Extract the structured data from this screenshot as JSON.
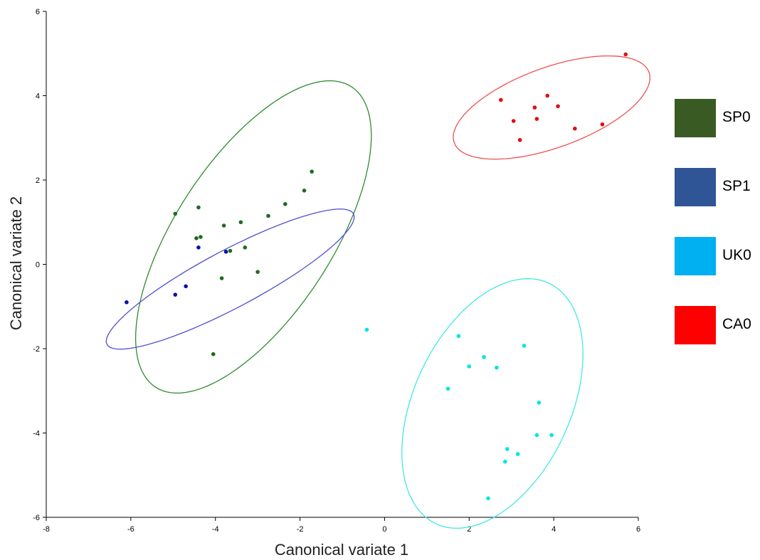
{
  "chart_data": {
    "type": "scatter",
    "xlabel": "Canonical variate 1",
    "ylabel": "Canonical variate 2",
    "xlim": [
      -8,
      6
    ],
    "ylim": [
      -6,
      6
    ],
    "xticks": [
      -8,
      -6,
      -4,
      -2,
      0,
      2,
      4,
      6
    ],
    "yticks": [
      -6,
      -4,
      -2,
      0,
      2,
      4,
      6
    ],
    "grid": false,
    "legend_position": "right",
    "series": [
      {
        "name": "SP0",
        "legend_color": "#3a5a24",
        "point_color": "#1e6b1e",
        "ellipse_color": "#2e8b2e",
        "ellipse": {
          "cx": -3.1,
          "cy": 0.65,
          "rx": 4.25,
          "ry": 1.85,
          "angle_deg": 57
        },
        "points": [
          [
            -4.95,
            1.2
          ],
          [
            -4.4,
            1.35
          ],
          [
            -4.45,
            0.62
          ],
          [
            -4.35,
            0.65
          ],
          [
            -3.8,
            0.92
          ],
          [
            -3.4,
            1.0
          ],
          [
            -2.75,
            1.15
          ],
          [
            -2.35,
            1.43
          ],
          [
            -1.9,
            1.75
          ],
          [
            -1.72,
            2.2
          ],
          [
            -3.3,
            0.4
          ],
          [
            -3.65,
            0.32
          ],
          [
            -3.0,
            -0.18
          ],
          [
            -3.85,
            -0.33
          ],
          [
            -4.05,
            -2.13
          ]
        ]
      },
      {
        "name": "SP1",
        "legend_color": "#2f5597",
        "point_color": "#1010a0",
        "ellipse_color": "#5050d0",
        "ellipse": {
          "cx": -3.65,
          "cy": -0.35,
          "rx": 3.3,
          "ry": 0.68,
          "angle_deg": 28
        },
        "points": [
          [
            -6.1,
            -0.9
          ],
          [
            -4.95,
            -0.72
          ],
          [
            -4.7,
            -0.52
          ],
          [
            -4.4,
            0.4
          ],
          [
            -3.75,
            0.3
          ]
        ]
      },
      {
        "name": "UK0",
        "legend_color": "#00b0f0",
        "point_color": "#00e5e5",
        "ellipse_color": "#40e8e8",
        "ellipse": {
          "cx": 2.55,
          "cy": -3.3,
          "rx": 3.15,
          "ry": 1.85,
          "angle_deg": 65
        },
        "points": [
          [
            -0.42,
            -1.55
          ],
          [
            1.75,
            -1.7
          ],
          [
            3.3,
            -1.93
          ],
          [
            2.35,
            -2.2
          ],
          [
            2.0,
            -2.42
          ],
          [
            2.65,
            -2.45
          ],
          [
            1.5,
            -2.95
          ],
          [
            3.65,
            -3.28
          ],
          [
            3.6,
            -4.05
          ],
          [
            3.95,
            -4.05
          ],
          [
            2.9,
            -4.38
          ],
          [
            3.15,
            -4.5
          ],
          [
            2.85,
            -4.68
          ],
          [
            2.45,
            -5.55
          ]
        ]
      },
      {
        "name": "CA0",
        "legend_color": "#ff0000",
        "point_color": "#e01010",
        "ellipse_color": "#f05050",
        "ellipse": {
          "cx": 3.95,
          "cy": 3.72,
          "rx": 2.45,
          "ry": 0.95,
          "angle_deg": 20
        },
        "points": [
          [
            2.75,
            3.9
          ],
          [
            3.85,
            4.0
          ],
          [
            4.1,
            3.75
          ],
          [
            3.55,
            3.72
          ],
          [
            3.05,
            3.4
          ],
          [
            3.6,
            3.45
          ],
          [
            4.5,
            3.22
          ],
          [
            5.15,
            3.32
          ],
          [
            3.2,
            2.95
          ],
          [
            5.7,
            4.98
          ]
        ]
      }
    ]
  }
}
